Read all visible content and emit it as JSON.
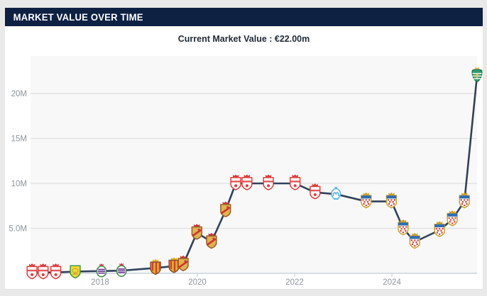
{
  "panel": {
    "title": "MARKET VALUE OVER TIME",
    "subtitle": "Current Market Value : €22.00m"
  },
  "colors": {
    "header_bg": "#0e2143",
    "card_bg": "#ffffff",
    "page_bg": "#e9e9e9",
    "subtitle_text": "#222b38",
    "axis_label": "#8e949c",
    "gridline": "#e2e2e2",
    "axis_line": "#c9d2dd",
    "plot_bg": "#f8f8f8",
    "series_line": "#31415c"
  },
  "chart_data": {
    "type": "line",
    "title": "Market value over time",
    "xlabel": "",
    "ylabel": "",
    "grid": true,
    "legend": "none",
    "x_range": [
      2016.57,
      2025.75
    ],
    "y_range": [
      0,
      24.17
    ],
    "x_ticks": [
      2018,
      2020,
      2022,
      2024
    ],
    "x_tick_labels": [
      "2018",
      "2020",
      "2022",
      "2024"
    ],
    "y_ticks": [
      5,
      10,
      15,
      20
    ],
    "y_tick_labels": [
      "5.0M",
      "10M",
      "15M",
      "20M"
    ],
    "unit": "€m",
    "points": [
      {
        "x": 2016.6,
        "value": 0.1,
        "crest": "red-white"
      },
      {
        "x": 2016.83,
        "value": 0.1,
        "crest": "red-white"
      },
      {
        "x": 2017.09,
        "value": 0.1,
        "crest": "red-white"
      },
      {
        "x": 2017.49,
        "value": 0.2,
        "crest": "yellow-green"
      },
      {
        "x": 2018.03,
        "value": 0.25,
        "crest": "purple-white"
      },
      {
        "x": 2018.44,
        "value": 0.3,
        "crest": "purple-white"
      },
      {
        "x": 2019.14,
        "value": 0.6,
        "crest": "red-yellow"
      },
      {
        "x": 2019.52,
        "value": 0.8,
        "crest": "red-yellow"
      },
      {
        "x": 2019.71,
        "value": 1.0,
        "crest": "gold-red"
      },
      {
        "x": 2019.99,
        "value": 4.5,
        "crest": "gold-red"
      },
      {
        "x": 2020.29,
        "value": 3.5,
        "crest": "gold-red"
      },
      {
        "x": 2020.58,
        "value": 7.0,
        "crest": "gold-red"
      },
      {
        "x": 2020.79,
        "value": 10.0,
        "crest": "red-white"
      },
      {
        "x": 2021.02,
        "value": 10.0,
        "crest": "red-white"
      },
      {
        "x": 2021.46,
        "value": 10.0,
        "crest": "red-white"
      },
      {
        "x": 2022.01,
        "value": 10.0,
        "crest": "red-white"
      },
      {
        "x": 2022.42,
        "value": 9.0,
        "crest": "red-white"
      },
      {
        "x": 2022.85,
        "value": 8.8,
        "crest": "light-blue"
      },
      {
        "x": 2023.47,
        "value": 8.0,
        "crest": "blue-red-check"
      },
      {
        "x": 2023.99,
        "value": 8.0,
        "crest": "blue-red-check"
      },
      {
        "x": 2024.23,
        "value": 5.0,
        "crest": "blue-red-check"
      },
      {
        "x": 2024.47,
        "value": 3.5,
        "crest": "blue-red-check"
      },
      {
        "x": 2024.98,
        "value": 4.8,
        "crest": "blue-red-check"
      },
      {
        "x": 2025.24,
        "value": 6.0,
        "crest": "blue-red-check"
      },
      {
        "x": 2025.49,
        "value": 8.0,
        "crest": "blue-red-check"
      },
      {
        "x": 2025.75,
        "value": 22.0,
        "crest": "green"
      }
    ],
    "crest_styles": {
      "red-white": {
        "bg": "#ffffff",
        "border": "#e23b3b",
        "crown": "#e23b3b",
        "accent": "#e23b3b"
      },
      "yellow-green": {
        "bg": "#f2d832",
        "border": "#3f9a3f",
        "crown": "",
        "accent": "#b89a2e"
      },
      "purple-white": {
        "bg": "#ffffff",
        "border": "#45964f",
        "crown": "#cc4444",
        "accent": "#6b3190"
      },
      "red-yellow": {
        "bg": "#e3b422",
        "border": "#8a4a28",
        "crown": "#e3b422",
        "accent": "#d23c3c"
      },
      "gold-red": {
        "bg": "#e2b14e",
        "border": "#9a5c28",
        "crown": "#c9342e",
        "accent": "#c9342e"
      },
      "light-blue": {
        "bg": "#ffffff",
        "border": "#55b2e0",
        "crown": "",
        "accent": "#55b2e0"
      },
      "blue-red-check": {
        "bg": "#ffffff",
        "border": "#c9a227",
        "crown": "#c9a227",
        "accent": "#d8403c",
        "chief": "#2f6db5"
      },
      "green": {
        "bg": "#2e9b6d",
        "border": "#1d6f4c",
        "crown": "#e8c35a",
        "accent": "#e8c35a"
      }
    }
  }
}
